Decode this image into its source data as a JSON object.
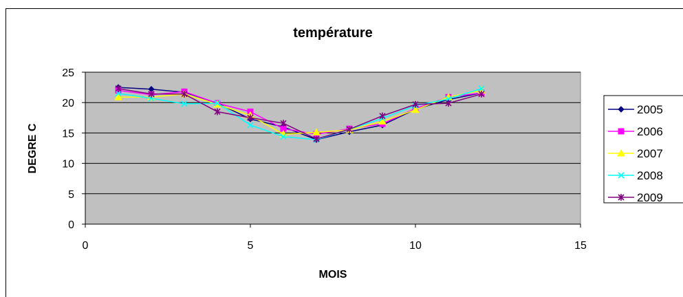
{
  "chart_data": {
    "type": "line",
    "title": "température",
    "xlabel": "MOIS",
    "ylabel": "DEGRE C",
    "xlim": [
      0,
      15
    ],
    "ylim": [
      0,
      25
    ],
    "xticks": [
      0,
      5,
      10,
      15
    ],
    "yticks": [
      0,
      5,
      10,
      15,
      20,
      25
    ],
    "grid": true,
    "legend_position": "right",
    "plot_background": "#c0c0c0",
    "x": [
      1,
      2,
      3,
      4,
      5,
      6,
      7,
      8,
      9,
      10,
      11,
      12
    ],
    "series": [
      {
        "name": "2005",
        "color": "#000080",
        "marker": "diamond",
        "values": [
          22.5,
          22.2,
          21.7,
          19.9,
          17.3,
          16.0,
          13.9,
          15.2,
          16.3,
          18.9,
          20.5,
          21.6
        ]
      },
      {
        "name": "2006",
        "color": "#ff00ff",
        "marker": "square",
        "values": [
          22.0,
          21.3,
          21.8,
          19.9,
          18.5,
          15.7,
          14.8,
          15.7,
          16.5,
          19.0,
          20.9,
          21.6
        ]
      },
      {
        "name": "2007",
        "color": "#ffff00",
        "marker": "triangle",
        "values": [
          20.9,
          20.9,
          21.4,
          19.7,
          17.9,
          14.8,
          15.1,
          15.5,
          16.9,
          18.8,
          20.9,
          22.0
        ]
      },
      {
        "name": "2008",
        "color": "#00ffff",
        "marker": "x",
        "values": [
          21.5,
          20.7,
          19.8,
          19.9,
          16.3,
          14.4,
          13.9,
          15.6,
          17.4,
          19.5,
          20.6,
          22.3
        ]
      },
      {
        "name": "2009",
        "color": "#800080",
        "marker": "star",
        "values": [
          22.3,
          21.4,
          21.4,
          18.5,
          17.5,
          16.6,
          14.0,
          15.6,
          17.8,
          19.7,
          19.9,
          21.4
        ]
      }
    ]
  }
}
